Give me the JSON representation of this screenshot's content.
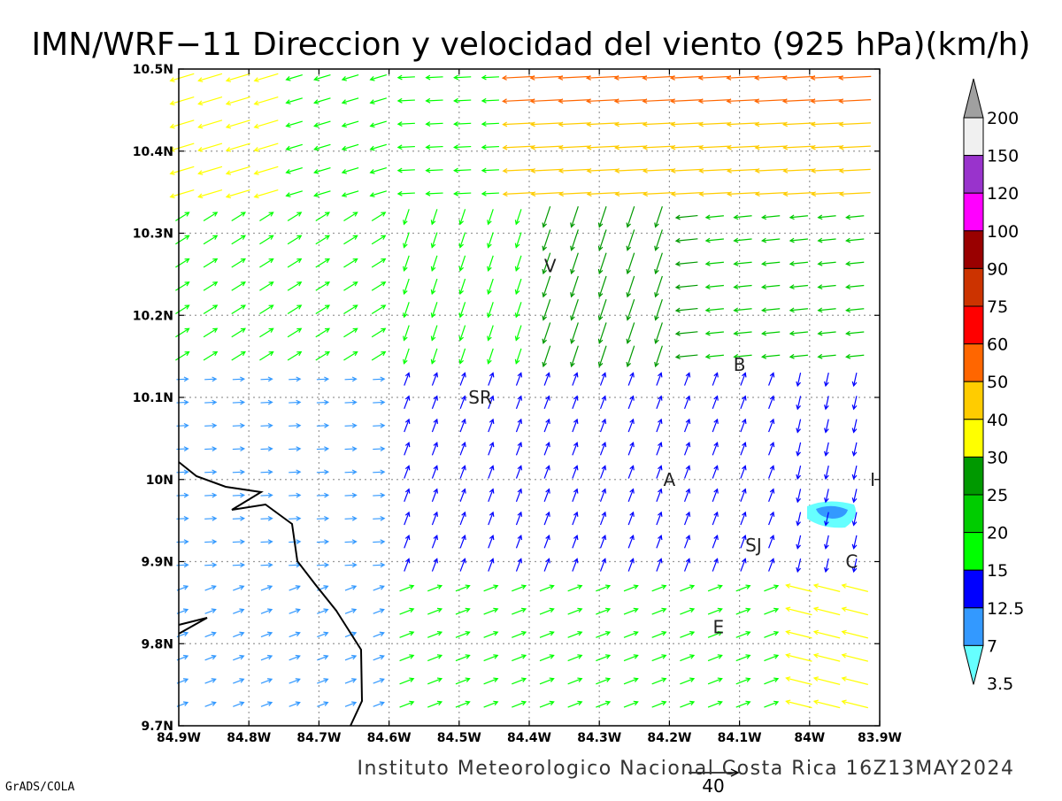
{
  "title": "IMN/WRF−11 Direccion y velocidad del viento (925 hPa)(km/h)",
  "footer": "Instituto Meteorologico Nacional Costa Rica 16Z13MAY2024",
  "software": "GrADS/COLA",
  "reference_vector_label": "40",
  "map": {
    "lon_range": [
      -84.9,
      -83.9
    ],
    "lat_range": [
      9.7,
      10.5
    ],
    "x_ticks": [
      "84.9W",
      "84.8W",
      "84.7W",
      "84.6W",
      "84.5W",
      "84.4W",
      "84.3W",
      "84.2W",
      "84.1W",
      "84W",
      "83.9W"
    ],
    "y_ticks": [
      "10.5N",
      "10.4N",
      "10.3N",
      "10.2N",
      "10.1N",
      "10N",
      "9.9N",
      "9.8N",
      "9.7N"
    ],
    "grid": true,
    "places": [
      {
        "label": "V",
        "lon": -84.37,
        "lat": 10.26
      },
      {
        "label": "B",
        "lon": -84.1,
        "lat": 10.14
      },
      {
        "label": "SR",
        "lon": -84.47,
        "lat": 10.1
      },
      {
        "label": "A",
        "lon": -84.2,
        "lat": 10.0
      },
      {
        "label": "I",
        "lon": -83.91,
        "lat": 10.0
      },
      {
        "label": "SJ",
        "lon": -84.08,
        "lat": 9.92
      },
      {
        "label": "C",
        "lon": -83.94,
        "lat": 9.9
      },
      {
        "label": "E",
        "lon": -84.13,
        "lat": 9.82
      }
    ]
  },
  "legend": {
    "labels": [
      "200",
      "150",
      "120",
      "100",
      "90",
      "75",
      "60",
      "50",
      "40",
      "30",
      "25",
      "20",
      "15",
      "12.5",
      "7",
      "3.5"
    ],
    "colors": [
      "#a0a0a0",
      "#f0f0f0",
      "#9933cc",
      "#ff00ff",
      "#990000",
      "#cc3300",
      "#ff0000",
      "#ff6600",
      "#ffcc00",
      "#ffff00",
      "#009900",
      "#00cc00",
      "#00ff00",
      "#0000ff",
      "#3399ff",
      "#66ffff"
    ]
  },
  "colors": {
    "frame": "#000000",
    "grid": "#999999",
    "coastline": "#000000"
  }
}
